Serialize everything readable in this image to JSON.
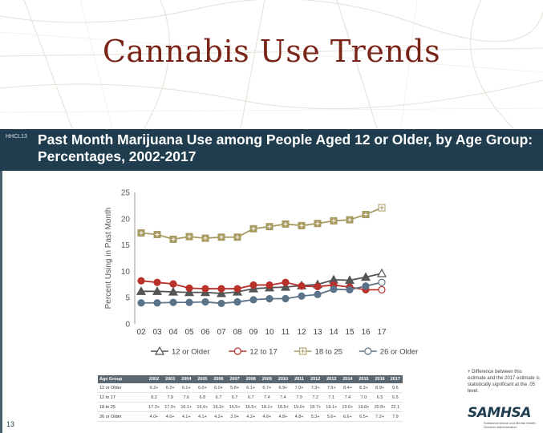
{
  "slide": {
    "title": "Cannabis Use Trends",
    "code": "HHCL13",
    "page_number": "13"
  },
  "chart_data": {
    "type": "line",
    "title": "Past Month Marijuana Use among People Aged 12 or Older, by Age Group: Percentages, 2002-2017",
    "ylabel": "Percent Using in Past Month",
    "xlabel": "",
    "ylim": [
      0,
      25
    ],
    "yticks": [
      0,
      5,
      10,
      15,
      20,
      25
    ],
    "categories": [
      "02",
      "03",
      "04",
      "05",
      "06",
      "07",
      "08",
      "09",
      "10",
      "11",
      "12",
      "13",
      "14",
      "15",
      "16",
      "17"
    ],
    "series": [
      {
        "name": "12 or Older",
        "color": "#555555",
        "marker": "triangle",
        "values": [
          6.2,
          6.2,
          6.1,
          6.0,
          6.0,
          5.8,
          6.1,
          6.7,
          6.9,
          7.0,
          7.3,
          7.5,
          8.4,
          8.3,
          8.9,
          9.6
        ]
      },
      {
        "name": "12 to 17",
        "color": "#b8312b",
        "marker": "circle",
        "values": [
          8.2,
          7.9,
          7.6,
          6.8,
          6.7,
          6.7,
          6.7,
          7.4,
          7.4,
          7.9,
          7.2,
          7.1,
          7.4,
          7.0,
          6.5,
          6.5
        ]
      },
      {
        "name": "18 to 25",
        "color": "#a79a5f",
        "marker": "square",
        "values": [
          17.3,
          17.0,
          16.1,
          16.6,
          16.3,
          16.5,
          16.5,
          18.1,
          18.5,
          19.0,
          18.7,
          19.1,
          19.6,
          19.8,
          20.8,
          22.1
        ]
      },
      {
        "name": "26 or Older",
        "color": "#5a7388",
        "marker": "circle",
        "values": [
          4.0,
          4.0,
          4.1,
          4.1,
          4.2,
          3.9,
          4.2,
          4.6,
          4.8,
          4.8,
          5.3,
          5.6,
          6.6,
          6.5,
          7.2,
          7.9
        ]
      }
    ],
    "legend_position": "bottom",
    "grid": false
  },
  "table": {
    "header_label": "Age Group",
    "years": [
      "2002",
      "2003",
      "2004",
      "2005",
      "2006",
      "2007",
      "2008",
      "2009",
      "2010",
      "2011",
      "2012",
      "2013",
      "2014",
      "2015",
      "2016",
      "2017"
    ],
    "rows": [
      {
        "label": "12 or Older",
        "values": [
          "6.2+",
          "6.2+",
          "6.1+",
          "6.0+",
          "6.0+",
          "5.8+",
          "6.1+",
          "6.7+",
          "6.9+",
          "7.0+",
          "7.3+",
          "7.5+",
          "8.4+",
          "8.3+",
          "8.9+",
          "9.6"
        ]
      },
      {
        "label": "12 to 17",
        "values": [
          "8.2",
          "7.9",
          "7.6",
          "6.8",
          "6.7",
          "6.7",
          "6.7",
          "7.4",
          "7.4",
          "7.9",
          "7.2",
          "7.1",
          "7.4",
          "7.0",
          "6.5",
          "6.5"
        ]
      },
      {
        "label": "18 to 25",
        "values": [
          "17.3+",
          "17.0+",
          "16.1+",
          "16.6+",
          "16.3+",
          "16.5+",
          "16.5+",
          "18.1+",
          "18.5+",
          "19.0+",
          "18.7+",
          "19.1+",
          "19.6+",
          "19.8+",
          "20.8+",
          "22.1"
        ]
      },
      {
        "label": "26 or Older",
        "values": [
          "4.0+",
          "4.0+",
          "4.1+",
          "4.1+",
          "4.2+",
          "3.9+",
          "4.2+",
          "4.6+",
          "4.8+",
          "4.8+",
          "5.3+",
          "5.6+",
          "6.6+",
          "6.5+",
          "7.2+",
          "7.9"
        ]
      }
    ]
  },
  "footnote": "+ Difference between this estimate and the 2017 estimate is statistically significant at the .05 level.",
  "logo": {
    "name": "SAMHSA",
    "subtitle": "Substance Abuse and Mental Health Services Administration"
  }
}
